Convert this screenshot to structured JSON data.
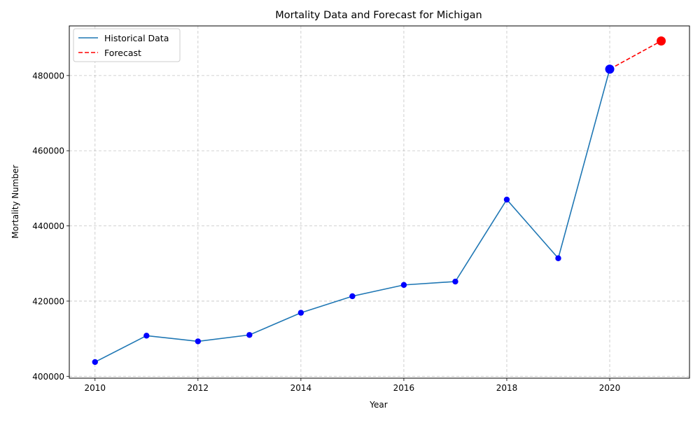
{
  "chart_data": {
    "type": "line",
    "title": "Mortality Data and Forecast for Michigan",
    "xlabel": "Year",
    "ylabel": "Mortality Number",
    "xlim": [
      2009.5,
      2021.55
    ],
    "ylim": [
      399500,
      493200
    ],
    "x_ticks": [
      2010,
      2012,
      2014,
      2016,
      2018,
      2020
    ],
    "y_ticks": [
      400000,
      420000,
      440000,
      460000,
      480000
    ],
    "grid": true,
    "legend_position": "top-left",
    "colors": {
      "historical": "#1f77b4",
      "forecast": "#ff0000",
      "points": "#0000ff"
    },
    "series": [
      {
        "name": "Historical Data",
        "style": "solid",
        "x": [
          2010,
          2011,
          2012,
          2013,
          2014,
          2015,
          2016,
          2017,
          2018,
          2019,
          2020
        ],
        "values": [
          403800,
          410800,
          409300,
          411000,
          416900,
          421300,
          424300,
          425200,
          447000,
          431400,
          481700
        ]
      },
      {
        "name": "Forecast",
        "style": "dashed",
        "x": [
          2020,
          2021
        ],
        "values": [
          481700,
          489200
        ]
      }
    ]
  }
}
